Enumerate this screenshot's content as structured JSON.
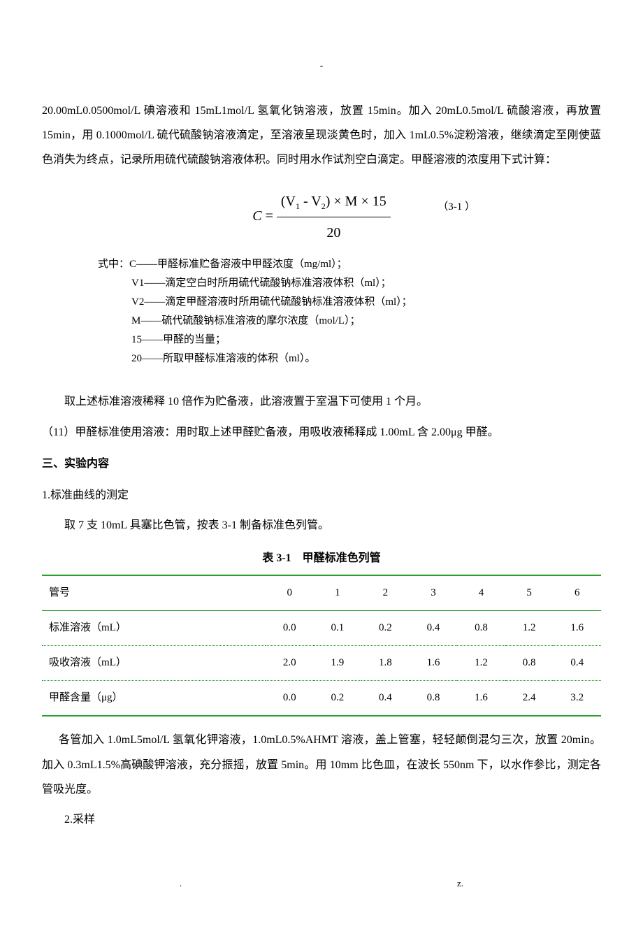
{
  "top_dash": "-",
  "para1": "20.00mL0.0500mol/L 碘溶液和 15mL1mol/L 氢氧化钠溶液，放置 15min。加入 20mL0.5mol/L 硫酸溶液，再放置 15min，用 0.1000mol/L 硫代硫酸钠溶液滴定，至溶液呈现淡黄色时，加入 1mL0.5%淀粉溶液，继续滴定至刚使蓝色消失为终点，记录所用硫代硫酸钠溶液体积。同时用水作试剂空白滴定。甲醛溶液的浓度用下式计算：",
  "formula": {
    "lhs_var": "C",
    "equals": " = ",
    "num_prefix": "(V",
    "num_sub1": "1",
    "num_mid": " - V",
    "num_sub2": "2",
    "num_suffix": ") × M × 15",
    "den": "20",
    "label": "（3-1 ）"
  },
  "def_intro": "式中：C——甲醛标准贮备溶液中甲醛浓度（mg/ml）；",
  "defs": [
    "V1——滴定空白时所用硫代硫酸钠标准溶液体积（ml）；",
    "V2——滴定甲醛溶液时所用硫代硫酸钠标准溶液体积（ml）；",
    "M——硫代硫酸钠标准溶液的摩尔浓度（mol/L）；",
    "15——甲醛的当量；",
    "20——所取甲醛标准溶液的体积（ml）。"
  ],
  "para2": "取上述标准溶液稀释 10 倍作为贮备液，此溶液置于室温下可使用 1 个月。",
  "para3": "（11）甲醛标准使用溶液：用时取上述甲醛贮备液，用吸收液稀释成 1.00mL 含 2.00μg 甲醛。",
  "section3": "三、实验内容",
  "item1": "1.标准曲线的测定",
  "item1_body": "取 7 支 10mL 具塞比色管，按表 3-1 制备标准色列管。",
  "table_caption": "表 3-1　甲醛标准色列管",
  "table": {
    "header_label": "管号",
    "cols": [
      "0",
      "1",
      "2",
      "3",
      "4",
      "5",
      "6"
    ],
    "rows": [
      {
        "label": "标准溶液（mL）",
        "vals": [
          "0.0",
          "0.1",
          "0.2",
          "0.4",
          "0.8",
          "1.2",
          "1.6"
        ]
      },
      {
        "label": "吸收溶液（mL）",
        "vals": [
          "2.0",
          "1.9",
          "1.8",
          "1.6",
          "1.2",
          "0.8",
          "0.4"
        ]
      },
      {
        "label": "甲醛含量（μg）",
        "vals": [
          "0.0",
          "0.2",
          "0.4",
          "0.8",
          "1.6",
          "2.4",
          "3.2"
        ]
      }
    ]
  },
  "para4": "各管加入 1.0mL5mol/L 氢氧化钾溶液，1.0mL0.5%AHMT 溶液，盖上管塞，轻轻颠倒混匀三次，放置 20min。加入 0.3mL1.5%高碘酸钾溶液，充分振摇，放置 5min。用 10mm 比色皿，在波长 550nm 下，以水作参比，测定各管吸光度。",
  "item2": "2.采样",
  "footer_left": ".",
  "footer_right": "z.",
  "colors": {
    "table_border": "#2aa02a",
    "text": "#000000",
    "background": "#ffffff"
  }
}
